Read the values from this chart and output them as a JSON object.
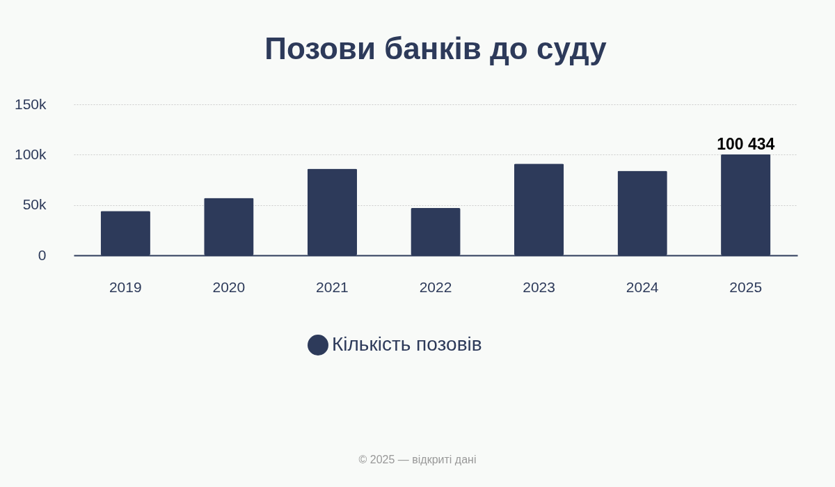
{
  "chart_data": {
    "type": "bar",
    "title": "Позови банків до суду",
    "categories": [
      "2019",
      "2020",
      "2021",
      "2022",
      "2023",
      "2024",
      "2025"
    ],
    "series": [
      {
        "name": "Кількість позовів",
        "color": "#2d3a5a",
        "values": [
          44000,
          57000,
          86000,
          47000,
          91000,
          84000,
          100434
        ],
        "value_labels": [
          null,
          null,
          null,
          null,
          null,
          null,
          "100 434"
        ]
      }
    ],
    "ylim": [
      0,
      150000
    ],
    "yticks": [
      0,
      {
        "value": 50000,
        "label": "50k"
      },
      {
        "value": 100000,
        "label": "100k"
      },
      {
        "value": 150000,
        "label": "150k"
      }
    ],
    "grid": "y",
    "legend": "bottom",
    "annotations": [
      "© 2025 — відкриті дані"
    ]
  }
}
